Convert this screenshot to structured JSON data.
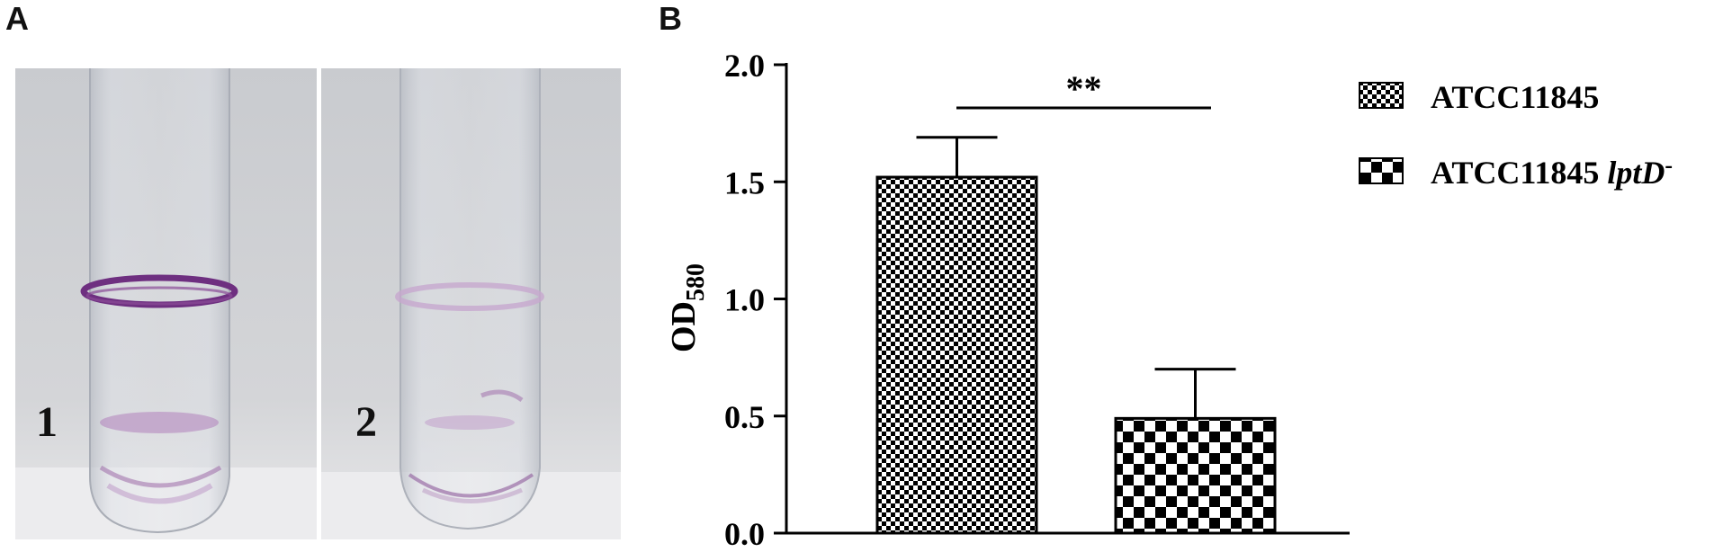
{
  "panels": {
    "a_label": "A",
    "b_label": "B"
  },
  "photo": {
    "tube1_label": "1",
    "tube2_label": "2",
    "stain_color": "#7b3a8a",
    "background_color": "#cfd0d4"
  },
  "chart_data": {
    "type": "bar",
    "ylabel": "OD",
    "ylabel_subscript": "580",
    "xlabel": "",
    "ylim": [
      0,
      2.0
    ],
    "yticks": [
      "0.0",
      "0.5",
      "1.0",
      "1.5",
      "2.0"
    ],
    "grid": false,
    "legend_position": "top-right",
    "categories": [
      "ATCC11845",
      "ATCC11845 lptD-"
    ],
    "series": [
      {
        "name": "ATCC11845",
        "value": 1.52,
        "error": 0.17,
        "pattern": "fine-checker"
      },
      {
        "name": "ATCC11845 lptD-",
        "value": 0.49,
        "error": 0.21,
        "pattern": "coarse-checker"
      }
    ],
    "legend": [
      {
        "text": "ATCC11845",
        "italic_suffix": "",
        "superscript": ""
      },
      {
        "text": "ATCC11845 ",
        "italic_suffix": "lptD",
        "superscript": "-"
      }
    ],
    "annotation": {
      "text": "**",
      "between": [
        0,
        1
      ]
    }
  }
}
